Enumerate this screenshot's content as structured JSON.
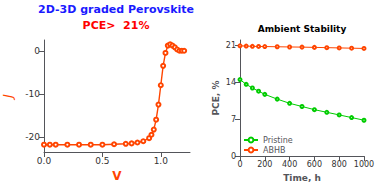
{
  "chart_data": [
    {
      "type": "line",
      "annotations": [
        {
          "text": "2D-3D graded Perovskite",
          "color": "#1a1aff"
        },
        {
          "text": "PCE>  21%",
          "color": "#ff0000"
        }
      ],
      "x": [
        0.0,
        0.05,
        0.1,
        0.2,
        0.3,
        0.4,
        0.5,
        0.6,
        0.7,
        0.75,
        0.8,
        0.85,
        0.9,
        0.92,
        0.94,
        0.96,
        0.98,
        1.0,
        1.02,
        1.04,
        1.06,
        1.08,
        1.1,
        1.12,
        1.14,
        1.16,
        1.18,
        1.2
      ],
      "values": [
        -21.8,
        -21.8,
        -21.8,
        -21.8,
        -21.8,
        -21.8,
        -21.8,
        -21.7,
        -21.6,
        -21.5,
        -21.3,
        -21.0,
        -20.3,
        -19.5,
        -18.3,
        -16.0,
        -12.5,
        -8.0,
        -3.5,
        -0.5,
        1.2,
        1.5,
        1.2,
        0.8,
        0.3,
        0.0,
        0.0,
        0.0
      ],
      "color": "#ff4500",
      "marker": "o",
      "xlabel": "V",
      "ylabel": "J",
      "xlim": [
        0.0,
        1.25
      ],
      "ylim": [
        -23.5,
        2.5
      ],
      "xticks": [
        {
          "value": 0.0,
          "label": "0.0"
        },
        0.5,
        {
          "value": 1.0,
          "label": "1.0"
        }
      ],
      "yticks": [
        -20,
        -10,
        0
      ],
      "grid": false
    },
    {
      "type": "line",
      "title": "Ambient Stability",
      "x": [
        0,
        50,
        100,
        150,
        200,
        300,
        400,
        500,
        600,
        700,
        800,
        900,
        1000
      ],
      "series": [
        {
          "name": "Pristine",
          "color": "#00cc00",
          "values": [
            14.5,
            13.6,
            12.9,
            12.3,
            11.7,
            10.8,
            10.0,
            9.4,
            8.8,
            8.3,
            7.8,
            7.3,
            6.8
          ]
        },
        {
          "name": "ABHB",
          "color": "#ff4500",
          "values": [
            20.9,
            20.85,
            20.8,
            20.78,
            20.76,
            20.72,
            20.68,
            20.65,
            20.6,
            20.55,
            20.5,
            20.45,
            20.4
          ]
        }
      ],
      "marker": "o",
      "xlabel": "Time, h",
      "ylabel": "PCE, %",
      "xlim": [
        0,
        1000
      ],
      "ylim": [
        0,
        22
      ],
      "xticks": [
        0,
        200,
        400,
        600,
        800,
        1000
      ],
      "yticks": [
        0,
        7,
        14,
        21
      ],
      "legend": "lower left",
      "grid": false
    }
  ]
}
